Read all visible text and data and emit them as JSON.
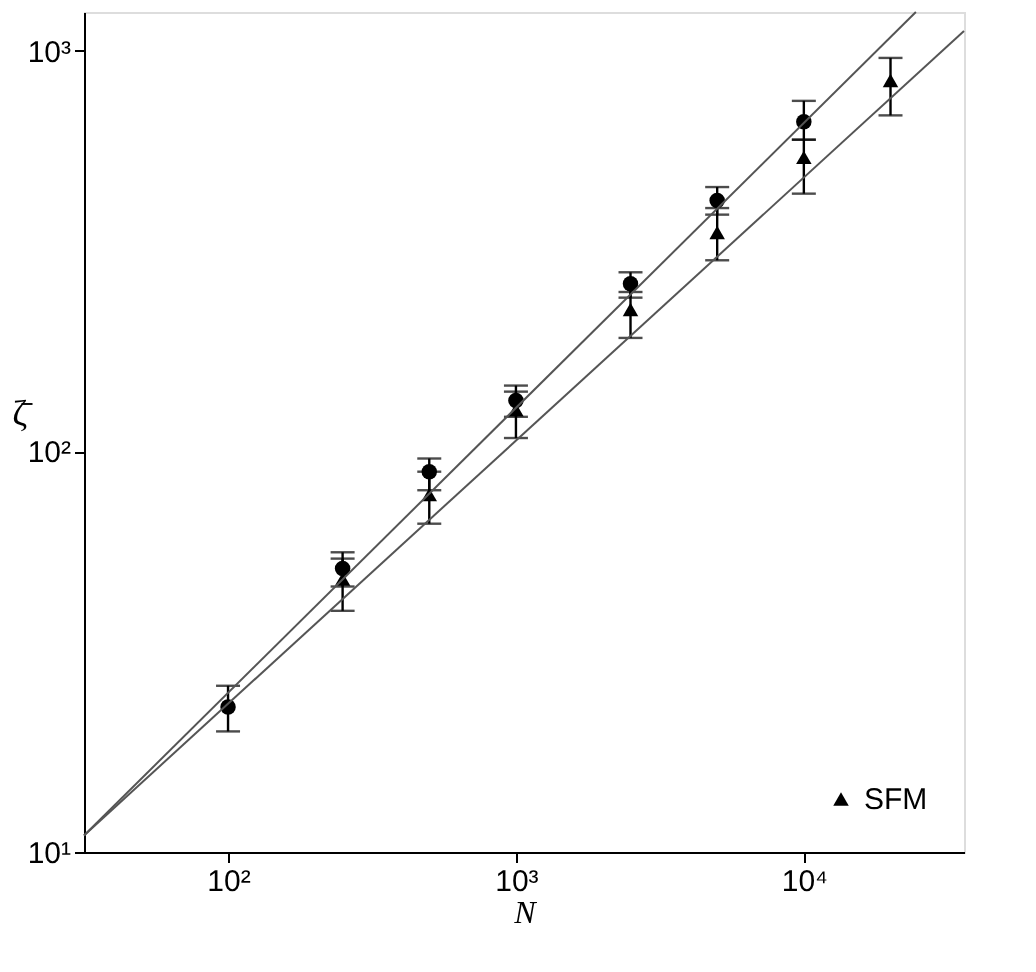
{
  "chart_data": {
    "type": "scatter",
    "xlabel": "N",
    "ylabel": "ζ̄",
    "log": "xy",
    "xlim": [
      31.6,
      36000
    ],
    "ylim": [
      10,
      1250
    ],
    "xticks": [
      {
        "value": 100,
        "label": "10²"
      },
      {
        "value": 1000,
        "label": "10³"
      },
      {
        "value": 10000,
        "label": "10⁴"
      }
    ],
    "yticks": [
      {
        "value": 10,
        "label": "10¹"
      },
      {
        "value": 100,
        "label": "10²"
      },
      {
        "value": 1000,
        "label": "10³"
      }
    ],
    "grid": false,
    "legend": "bottom right",
    "series": [
      {
        "name": null,
        "color": "#000000",
        "marker": "circle",
        "x": [
          100,
          250,
          500,
          1000,
          2500,
          5000,
          10000
        ],
        "values": [
          23,
          51,
          89,
          134,
          262,
          423,
          665
        ],
        "errors": [
          [
            20,
            26
          ],
          [
            46,
            56
          ],
          [
            80,
            96
          ],
          [
            122,
            146
          ],
          [
            242,
            280
          ],
          [
            390,
            457
          ],
          [
            600,
            750
          ]
        ]
      },
      {
        "name": "SFM",
        "color": "#000000",
        "marker": "triangle",
        "x": [
          250,
          500,
          1000,
          2500,
          5000,
          10000,
          20000
        ],
        "values": [
          48,
          78,
          127,
          226,
          352,
          542,
          843
        ],
        "errors": [
          [
            40,
            54
          ],
          [
            66,
            89
          ],
          [
            108,
            141
          ],
          [
            192,
            250
          ],
          [
            300,
            405
          ],
          [
            440,
            600
          ],
          [
            690,
            960
          ]
        ]
      },
      {
        "name": null,
        "type": "line",
        "color": "#555555",
        "x": [
          31.6,
          24500
        ],
        "values": [
          11,
          1250
        ]
      },
      {
        "name": null,
        "type": "line",
        "color": "#555555",
        "x": [
          31.6,
          36000
        ],
        "values": [
          11,
          1120
        ]
      }
    ]
  }
}
